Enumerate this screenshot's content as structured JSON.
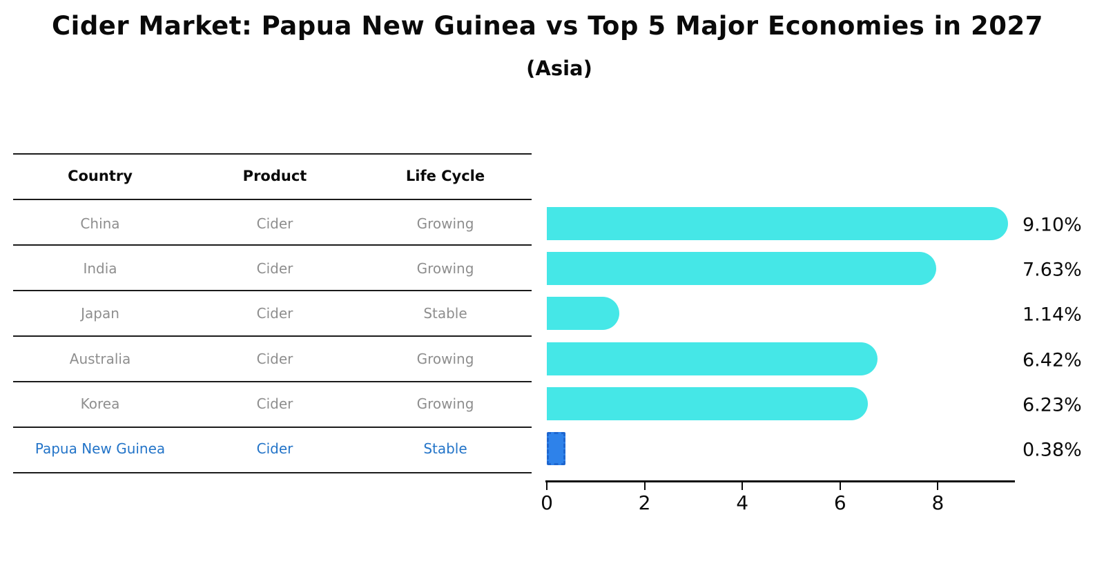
{
  "title": "Cider Market: Papua New Guinea vs Top 5 Major Economies in 2027",
  "subtitle": "(Asia)",
  "table": {
    "headers": [
      "Country",
      "Product",
      "Life Cycle"
    ],
    "rows": [
      {
        "country": "China",
        "product": "Cider",
        "life_cycle": "Growing",
        "highlight": false
      },
      {
        "country": "India",
        "product": "Cider",
        "life_cycle": "Growing",
        "highlight": false
      },
      {
        "country": "Japan",
        "product": "Cider",
        "life_cycle": "Stable",
        "highlight": false
      },
      {
        "country": "Australia",
        "product": "Cider",
        "life_cycle": "Growing",
        "highlight": false
      },
      {
        "country": "Korea",
        "product": "Cider",
        "life_cycle": "Growing",
        "highlight": false
      },
      {
        "country": "Papua New Guinea",
        "product": "Cider",
        "life_cycle": "Stable",
        "highlight": true
      }
    ]
  },
  "chart_data": {
    "type": "bar",
    "orientation": "horizontal",
    "title": "Cider Market: Papua New Guinea vs Top 5 Major Economies in 2027",
    "subtitle": "(Asia)",
    "categories": [
      "China",
      "India",
      "Japan",
      "Australia",
      "Korea",
      "Papua New Guinea"
    ],
    "values": [
      9.1,
      7.63,
      1.14,
      6.42,
      6.23,
      0.38
    ],
    "value_labels": [
      "9.10%",
      "7.63%",
      "1.14%",
      "6.42%",
      "6.23%",
      "0.38%"
    ],
    "xlabel": "",
    "ylabel": "",
    "xlim": [
      0,
      9.6
    ],
    "x_ticks": [
      0,
      2,
      4,
      6,
      8
    ],
    "grid": false,
    "legend": false,
    "highlight_index": 5,
    "bar_color": "#45E7E7",
    "highlight_bar_color": "#2E82EA",
    "highlight_text_color": "#2374C8"
  }
}
